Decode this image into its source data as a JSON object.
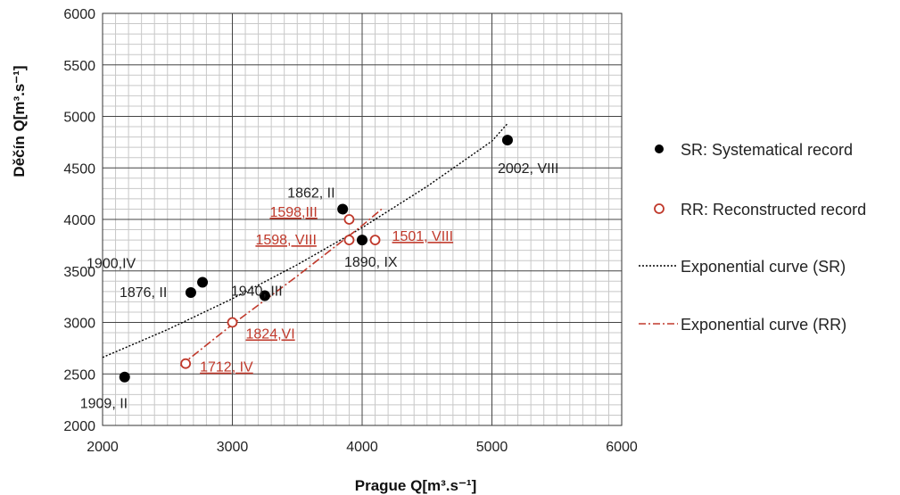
{
  "chart_data": {
    "type": "scatter",
    "xlabel": "Prague  Q[m³.s⁻¹]",
    "ylabel": "Děčín  Q[m³.s⁻¹]",
    "xlim": [
      2000,
      6000
    ],
    "ylim": [
      2000,
      6000
    ],
    "x_ticks": [
      2000,
      3000,
      4000,
      5000,
      6000
    ],
    "y_ticks": [
      2000,
      2500,
      3000,
      3500,
      4000,
      4500,
      5000,
      5500,
      6000
    ],
    "grid": true,
    "legend_position": "right",
    "series": [
      {
        "name": "SR: Systematical record",
        "marker": "filled-circle",
        "color": "#000000",
        "points": [
          {
            "x": 2170,
            "y": 2470,
            "label": "1909, II"
          },
          {
            "x": 2680,
            "y": 3290,
            "label": "1876, II"
          },
          {
            "x": 2770,
            "y": 3390,
            "label": "1900,IV"
          },
          {
            "x": 3250,
            "y": 3260,
            "label": "1940, III"
          },
          {
            "x": 3850,
            "y": 4100,
            "label": "1862, II"
          },
          {
            "x": 4000,
            "y": 3800,
            "label": "1890, IX"
          },
          {
            "x": 5120,
            "y": 4770,
            "label": "2002, VIII"
          }
        ]
      },
      {
        "name": "RR: Reconstructed record",
        "marker": "open-circle",
        "color": "#c0392b",
        "points": [
          {
            "x": 2640,
            "y": 2600,
            "label": "1712, IV"
          },
          {
            "x": 3000,
            "y": 3000,
            "label": "1824,VI"
          },
          {
            "x": 3900,
            "y": 4000,
            "label": "1598,III"
          },
          {
            "x": 3900,
            "y": 3800,
            "label": "1598, VIII"
          },
          {
            "x": 4100,
            "y": 3800,
            "label": "1501, VIII"
          }
        ]
      },
      {
        "name": "Exponential curve (SR)",
        "style": "dotted",
        "color": "#000000",
        "x": [
          2000,
          2500,
          3000,
          3500,
          4000,
          4500,
          5000,
          5120
        ],
        "y": [
          2660,
          2930,
          3230,
          3560,
          3920,
          4320,
          4760,
          4930
        ]
      },
      {
        "name": "Exponential curve (RR)",
        "style": "dash-dot",
        "color": "#c0392b",
        "x": [
          2600,
          3000,
          3500,
          4000,
          4150
        ],
        "y": [
          2580,
          2980,
          3450,
          3940,
          4100
        ]
      }
    ]
  },
  "colors": {
    "sr": "#000000",
    "rr": "#c0392b",
    "grid_major": "#444444",
    "grid_minor": "#c8c8c8"
  }
}
